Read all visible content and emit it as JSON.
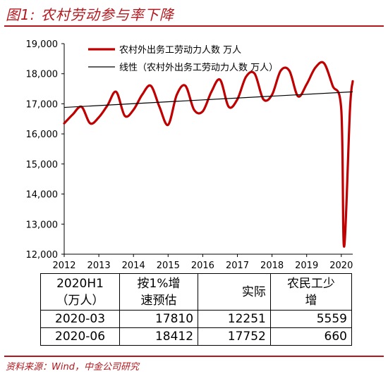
{
  "title": "图1:  农村劳动参与率下降",
  "source": "资料来源：Wind，中金公司研究",
  "colors": {
    "accent": "#b3171d",
    "series_main": "#c00000",
    "series_trend": "#000000"
  },
  "chart_data": {
    "type": "line",
    "title": "",
    "xlabel": "",
    "ylabel": "",
    "ylim": [
      12000,
      19000
    ],
    "yticks": [
      12000,
      13000,
      14000,
      15000,
      16000,
      17000,
      18000,
      19000
    ],
    "ytick_labels": [
      "12,000",
      "13,000",
      "14,000",
      "15,000",
      "16,000",
      "17,000",
      "18,000",
      "19,000"
    ],
    "xticks": [
      "2012",
      "2013",
      "2014",
      "2015",
      "2016",
      "2017",
      "2018",
      "2019",
      "2020"
    ],
    "x_range": [
      2012.0,
      2020.33
    ],
    "grid": false,
    "legend_position": "top",
    "series": [
      {
        "name": "农村外出务工劳动力人数  万人",
        "color": "#c00000",
        "points": [
          [
            2012.0,
            16350
          ],
          [
            2012.25,
            16650
          ],
          [
            2012.5,
            16900
          ],
          [
            2012.75,
            16350
          ],
          [
            2013.0,
            16550
          ],
          [
            2013.25,
            16950
          ],
          [
            2013.5,
            17400
          ],
          [
            2013.75,
            16600
          ],
          [
            2014.0,
            16800
          ],
          [
            2014.25,
            17300
          ],
          [
            2014.5,
            17600
          ],
          [
            2014.75,
            16900
          ],
          [
            2015.0,
            16300
          ],
          [
            2015.25,
            17300
          ],
          [
            2015.5,
            17600
          ],
          [
            2015.75,
            16800
          ],
          [
            2016.0,
            16750
          ],
          [
            2016.25,
            17400
          ],
          [
            2016.5,
            17800
          ],
          [
            2016.75,
            16900
          ],
          [
            2017.0,
            17150
          ],
          [
            2017.25,
            17900
          ],
          [
            2017.5,
            18000
          ],
          [
            2017.75,
            17150
          ],
          [
            2018.0,
            17300
          ],
          [
            2018.25,
            18100
          ],
          [
            2018.5,
            18100
          ],
          [
            2018.75,
            17250
          ],
          [
            2019.0,
            17650
          ],
          [
            2019.25,
            18200
          ],
          [
            2019.5,
            18350
          ],
          [
            2019.75,
            17600
          ],
          [
            2020.0,
            16800
          ],
          [
            2020.08,
            12250
          ],
          [
            2020.25,
            16800
          ],
          [
            2020.33,
            17750
          ]
        ]
      },
      {
        "name": "线性（农村外出务工劳动力人数  万人）",
        "color": "#000000",
        "points": [
          [
            2012.0,
            16880
          ],
          [
            2020.33,
            17400
          ]
        ]
      }
    ]
  },
  "table": {
    "header": [
      [
        "2020H1",
        "（万人）"
      ],
      [
        "按1%增",
        "速预估"
      ],
      [
        "实际"
      ],
      [
        "农民工少",
        "增"
      ]
    ],
    "rows": [
      [
        "2020-03",
        "17810",
        "12251",
        "5559"
      ],
      [
        "2020-06",
        "18412",
        "17752",
        "660"
      ]
    ]
  }
}
